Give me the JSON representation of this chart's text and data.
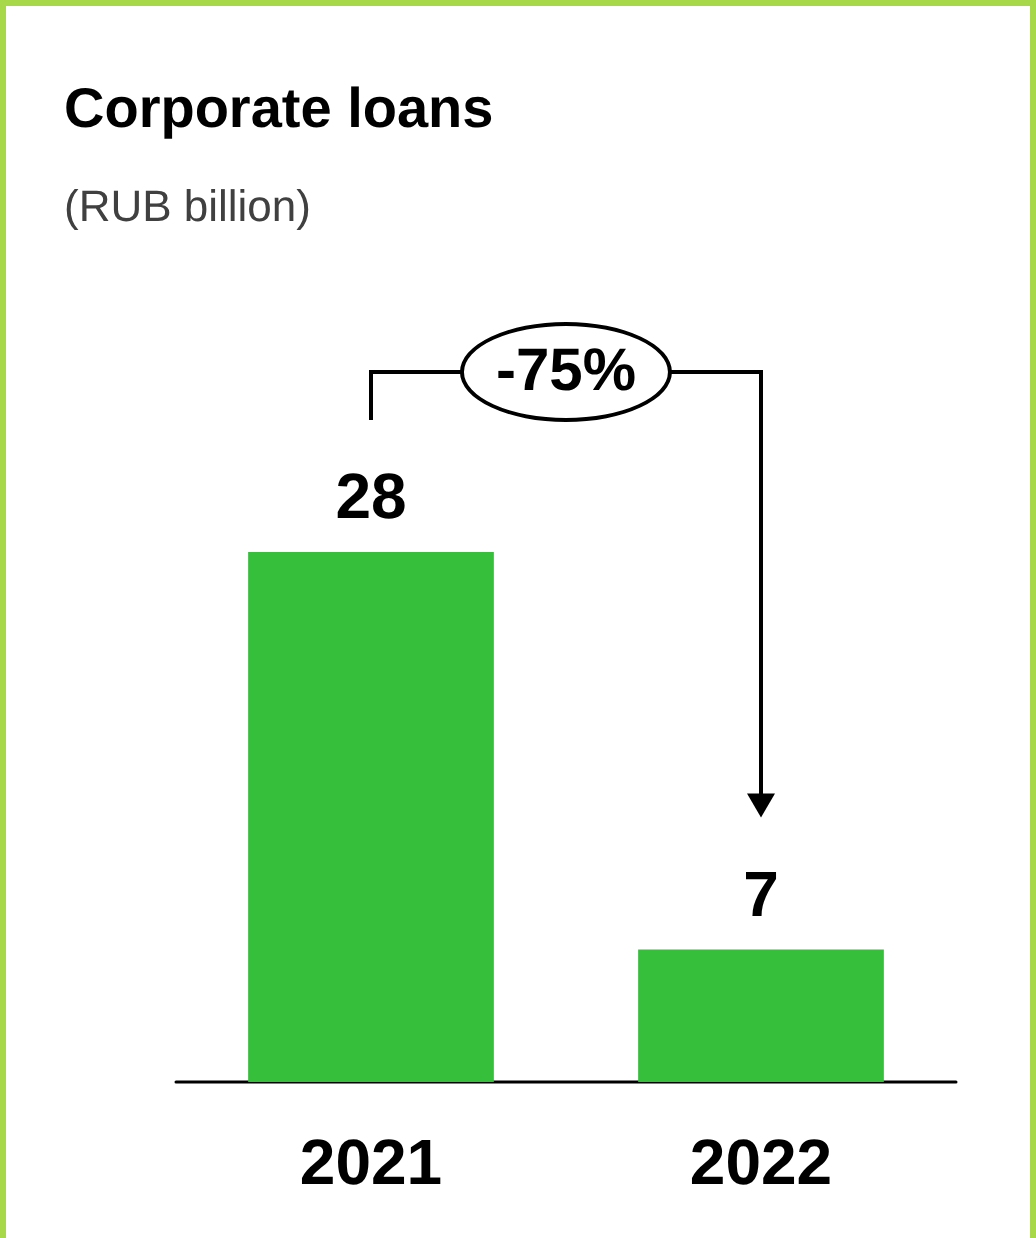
{
  "chart_data": {
    "type": "bar",
    "title": "Corporate loans",
    "subtitle": "(RUB billion)",
    "categories": [
      "2021",
      "2022"
    ],
    "values": [
      28,
      7
    ],
    "color": "#36bf3a",
    "data_labels": true,
    "annotations": [
      "-75%"
    ]
  }
}
